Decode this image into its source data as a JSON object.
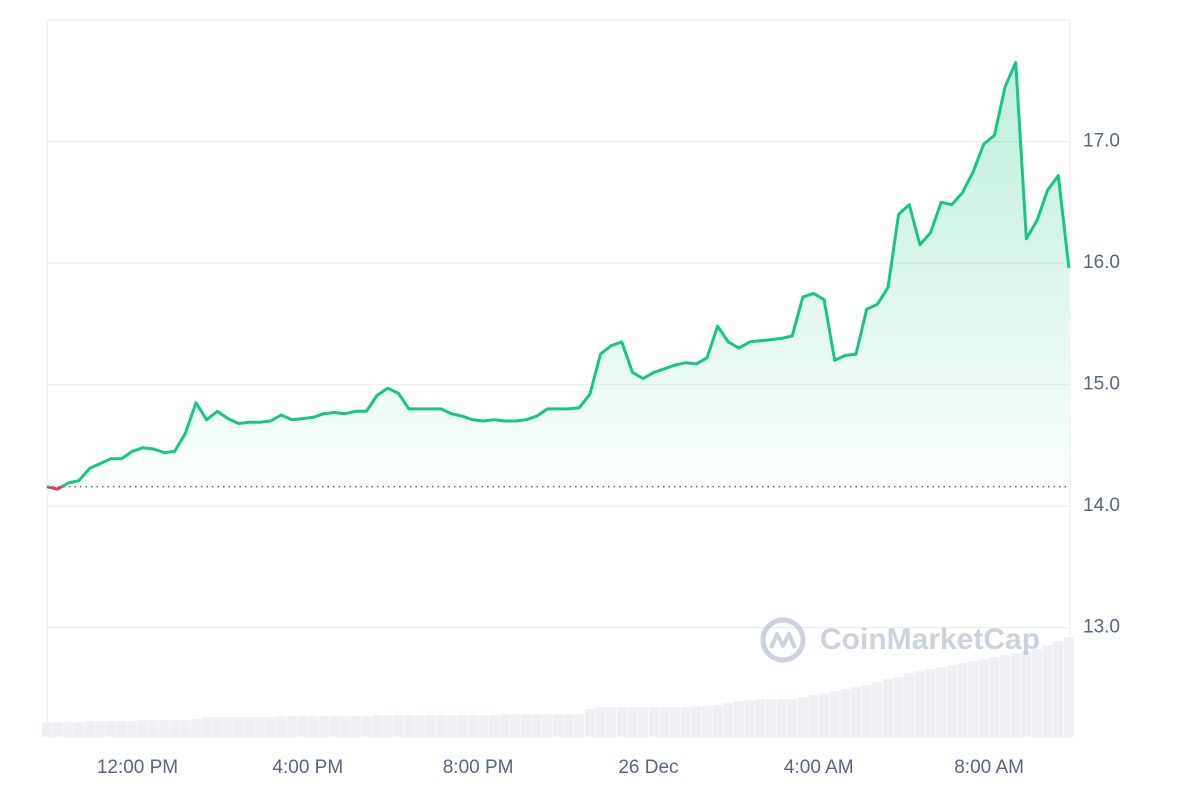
{
  "chart_data": {
    "type": "line",
    "watermark": "CoinMarketCap",
    "x": [
      9.875,
      10.125,
      10.375,
      10.625,
      10.875,
      11.125,
      11.375,
      11.625,
      11.875,
      12.125,
      12.375,
      12.625,
      12.875,
      13.125,
      13.375,
      13.625,
      13.875,
      14.125,
      14.375,
      14.625,
      14.875,
      15.125,
      15.375,
      15.625,
      15.875,
      16.125,
      16.375,
      16.625,
      16.875,
      17.125,
      17.375,
      17.625,
      17.875,
      18.125,
      18.375,
      18.625,
      18.875,
      19.125,
      19.375,
      19.625,
      19.875,
      20.125,
      20.375,
      20.625,
      20.875,
      21.125,
      21.375,
      21.625,
      21.875,
      22.125,
      22.375,
      22.625,
      22.875,
      23.125,
      23.375,
      23.625,
      23.875,
      24.125,
      24.375,
      24.625,
      24.875,
      25.125,
      25.375,
      25.625,
      25.875,
      26.125,
      26.375,
      26.625,
      26.875,
      27.125,
      27.375,
      27.625,
      27.875,
      28.125,
      28.375,
      28.625,
      28.875,
      29.125,
      29.375,
      29.625,
      29.875,
      30.125,
      30.375,
      30.625,
      30.875,
      31.125,
      31.375,
      31.625,
      31.875,
      32.125,
      32.375,
      32.625,
      32.875,
      33.125,
      33.375,
      33.625,
      33.875
    ],
    "series": [
      {
        "color": "#16c784",
        "below_color": "#ea3943",
        "values": [
          14.16,
          14.14,
          14.19,
          14.21,
          14.31,
          14.35,
          14.39,
          14.39,
          14.45,
          14.48,
          14.47,
          14.44,
          14.45,
          14.6,
          14.85,
          14.71,
          14.78,
          14.72,
          14.68,
          14.69,
          14.69,
          14.7,
          14.75,
          14.71,
          14.72,
          14.73,
          14.76,
          14.77,
          14.76,
          14.78,
          14.78,
          14.91,
          14.97,
          14.93,
          14.8,
          14.8,
          14.8,
          14.8,
          14.76,
          14.74,
          14.71,
          14.7,
          14.71,
          14.7,
          14.7,
          14.71,
          14.74,
          14.8,
          14.8,
          14.8,
          14.81,
          14.92,
          15.25,
          15.32,
          15.35,
          15.1,
          15.05,
          15.1,
          15.13,
          15.16,
          15.18,
          15.17,
          15.22,
          15.48,
          15.35,
          15.3,
          15.35,
          15.36,
          15.37,
          15.38,
          15.4,
          15.72,
          15.75,
          15.7,
          15.2,
          15.24,
          15.25,
          15.62,
          15.66,
          15.8,
          16.4,
          16.48,
          16.15,
          16.25,
          16.5,
          16.48,
          16.58,
          16.75,
          16.98,
          17.05,
          17.45,
          17.65,
          16.2,
          16.35,
          16.6,
          16.72,
          15.96
        ]
      }
    ],
    "volume": {
      "color": "#eef0f4",
      "values": [
        15,
        15,
        15,
        15,
        16,
        16,
        16,
        16,
        16,
        17,
        17,
        17,
        17,
        17,
        18,
        20,
        20,
        20,
        20,
        20,
        20,
        20,
        21,
        21,
        21,
        21,
        21,
        21,
        21,
        21,
        21,
        22,
        22,
        22,
        22,
        22,
        22,
        22,
        22,
        22,
        22,
        22,
        22,
        23,
        23,
        23,
        23,
        23,
        23,
        23,
        23,
        28,
        30,
        30,
        30,
        30,
        30,
        30,
        30,
        30,
        30,
        31,
        31,
        32,
        34,
        36,
        37,
        38,
        38,
        38,
        38,
        40,
        42,
        44,
        46,
        48,
        50,
        52,
        55,
        58,
        60,
        64,
        66,
        68,
        70,
        72,
        74,
        76,
        78,
        80,
        82,
        84,
        86,
        88,
        92,
        96,
        100
      ]
    },
    "baseline": 14.16,
    "xlim": [
      9.875,
      33.9
    ],
    "ylim": [
      12.1,
      18.0
    ],
    "xticks": [
      {
        "value": 12,
        "label": "12:00 PM"
      },
      {
        "value": 16,
        "label": "4:00 PM"
      },
      {
        "value": 20,
        "label": "8:00 PM"
      },
      {
        "value": 24,
        "label": "26 Dec"
      },
      {
        "value": 28,
        "label": "4:00 AM"
      },
      {
        "value": 32,
        "label": "8:00 AM"
      }
    ],
    "yticks": [
      {
        "value": 13,
        "label": "13.0"
      },
      {
        "value": 14,
        "label": "14.0"
      },
      {
        "value": 15,
        "label": "15.0"
      },
      {
        "value": 16,
        "label": "16.0"
      },
      {
        "value": 17,
        "label": "17.0"
      }
    ],
    "grid": true
  }
}
